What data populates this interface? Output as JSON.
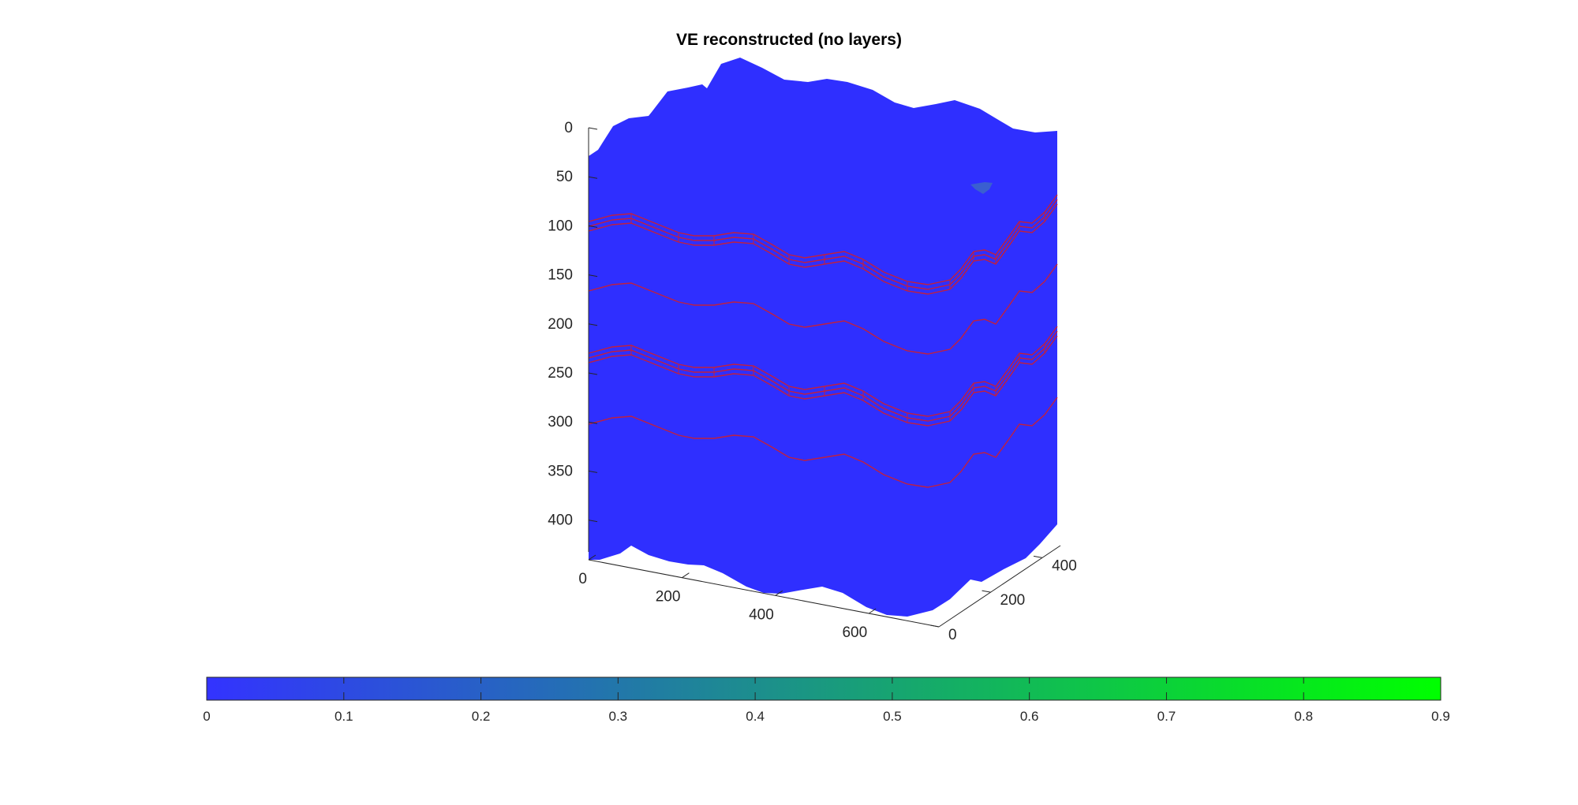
{
  "chart_data": {
    "type": "surface3d",
    "title": "VE reconstructed (no layers)",
    "z_axis": {
      "reversed": true,
      "ticks": [
        "0",
        "50",
        "100",
        "150",
        "200",
        "250",
        "300",
        "350",
        "400"
      ]
    },
    "x_axis": {
      "ticks": [
        "0",
        "200",
        "400",
        "600"
      ]
    },
    "y_axis": {
      "ticks": [
        "0",
        "200",
        "400"
      ]
    },
    "surface_value_dominant": 0,
    "highlight_patch_value": 0.2,
    "layer_bands": {
      "count": 2,
      "style": "thin-red-stacked-lines"
    },
    "colorbar": {
      "location": "southoutside",
      "min": 0,
      "max": 0.9,
      "ticks": [
        "0",
        "0.1",
        "0.2",
        "0.3",
        "0.4",
        "0.5",
        "0.6",
        "0.7",
        "0.8",
        "0.9"
      ],
      "color_low": "#3333ff",
      "color_high": "#00ff00"
    },
    "colors": {
      "surface": "#2f2fff",
      "layer_lines": "#c0203f",
      "axis": "#262626"
    }
  }
}
